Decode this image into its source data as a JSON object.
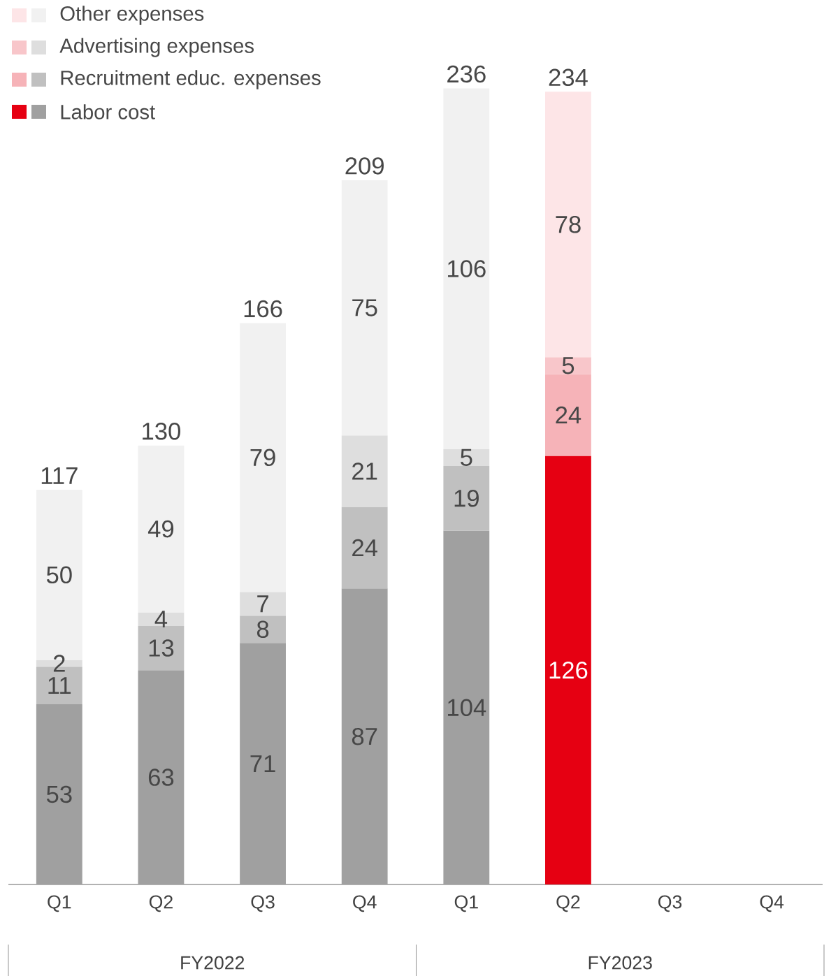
{
  "chart_data": {
    "type": "bar",
    "stacked": true,
    "data_labels": true,
    "legend": "top left",
    "categories": [
      "Q1",
      "Q2",
      "Q3",
      "Q4",
      "Q1",
      "Q2",
      "Q3",
      "Q4"
    ],
    "series": [
      {
        "name": "Labor cost",
        "values": [
          53,
          63,
          71,
          87,
          104,
          126,
          null,
          null
        ],
        "colors": [
          "#a0a0a0",
          "#a0a0a0",
          "#a0a0a0",
          "#a0a0a0",
          "#a0a0a0",
          "#e60012",
          null,
          null
        ]
      },
      {
        "name": "Recruitment educ. expenses",
        "values": [
          11,
          13,
          8,
          24,
          19,
          24,
          null,
          null
        ],
        "colors": [
          "#c0c0c0",
          "#c0c0c0",
          "#c0c0c0",
          "#c0c0c0",
          "#c0c0c0",
          "#f6b3b8",
          null,
          null
        ]
      },
      {
        "name": "Advertising expenses",
        "values": [
          2,
          4,
          7,
          21,
          5,
          5,
          null,
          null
        ],
        "colors": [
          "#dedede",
          "#dedede",
          "#dedede",
          "#dedede",
          "#dedede",
          "#f8c6ca",
          null,
          null
        ]
      },
      {
        "name": "Other expenses",
        "values": [
          50,
          49,
          79,
          75,
          106,
          78,
          null,
          null
        ],
        "colors": [
          "#f1f1f1",
          "#f1f1f1",
          "#f1f1f1",
          "#f1f1f1",
          "#f1f1f1",
          "#fde5e7",
          null,
          null
        ]
      }
    ],
    "totals": [
      "117",
      "130",
      "166",
      "209",
      "236",
      "234",
      null,
      null
    ],
    "annotations": [
      "FY2022",
      "FY2023"
    ]
  }
}
